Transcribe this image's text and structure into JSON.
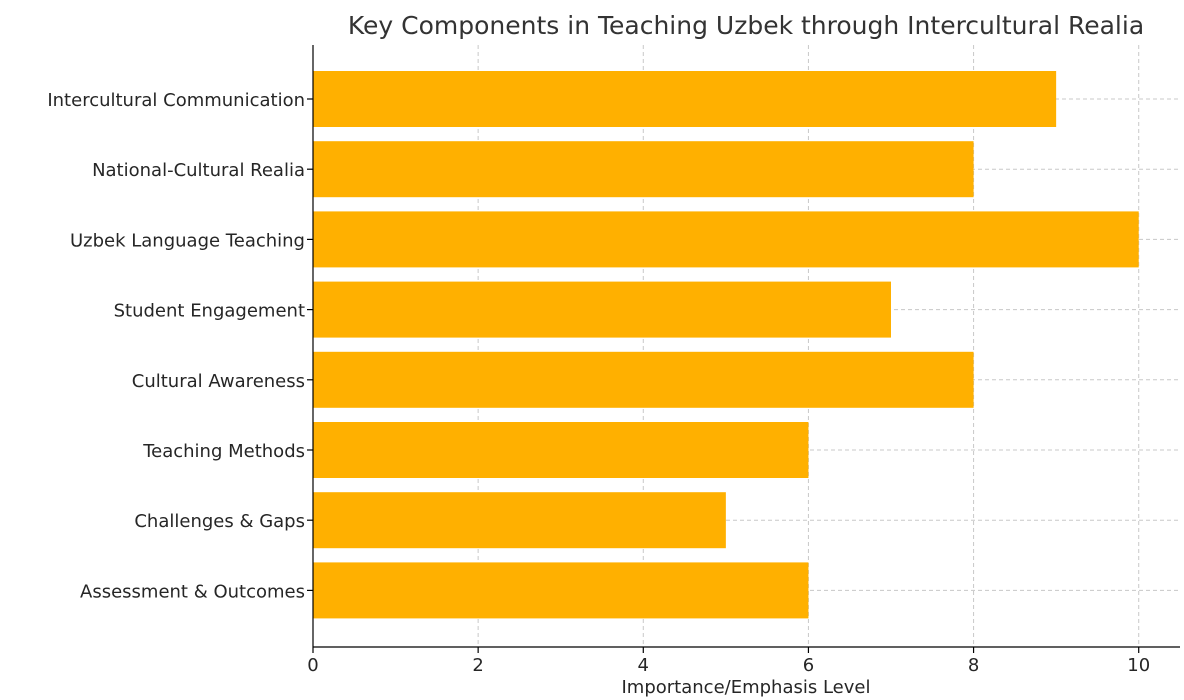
{
  "chart_data": {
    "type": "bar",
    "orientation": "horizontal",
    "title": "Key Components in Teaching Uzbek through Intercultural Realia",
    "xlabel": "Importance/Emphasis Level",
    "ylabel": "",
    "xlim": [
      0,
      10.5
    ],
    "xticks": [
      0,
      2,
      4,
      6,
      8,
      10
    ],
    "grid": true,
    "categories": [
      "Intercultural Communication",
      "National-Cultural Realia",
      "Uzbek Language Teaching",
      "Student Engagement",
      "Cultural Awareness",
      "Teaching Methods",
      "Challenges & Gaps",
      "Assessment & Outcomes"
    ],
    "values": [
      9,
      8,
      10,
      7,
      8,
      6,
      5,
      6
    ],
    "bar_color": "#FFB000"
  }
}
